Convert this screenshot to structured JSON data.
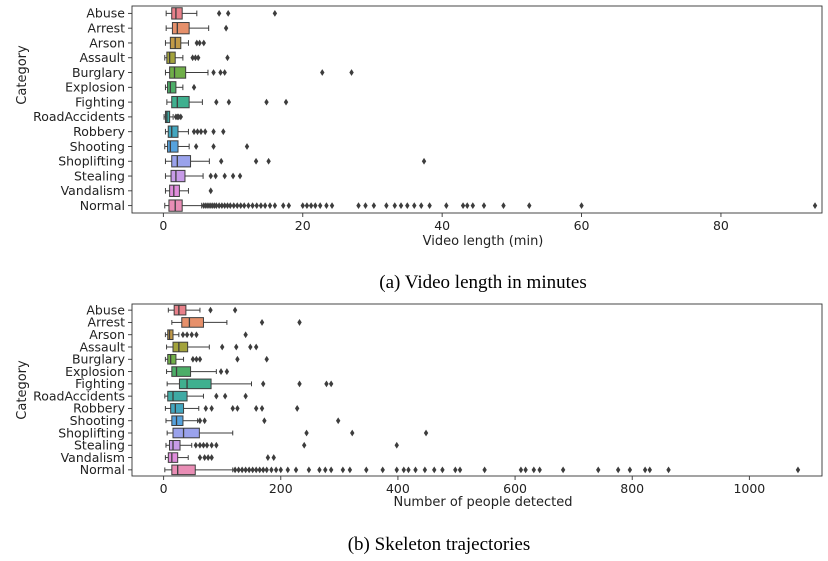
{
  "chart_data": [
    {
      "type": "box",
      "caption": "(a) Video length in minutes",
      "xlabel": "Video length (min)",
      "ylabel": "Category",
      "xlim": [
        -4.5,
        94.5
      ],
      "xticks": [
        0,
        20,
        40,
        60,
        80
      ],
      "categories": [
        {
          "name": "Abuse",
          "color": "#e8808a",
          "whislo": 0.4,
          "q1": 1.2,
          "median": 1.8,
          "q3": 2.7,
          "whishi": 4.8,
          "fliers": [
            8,
            9.3,
            16
          ]
        },
        {
          "name": "Arrest",
          "color": "#e6906b",
          "whislo": 0.4,
          "q1": 1.3,
          "median": 2.0,
          "q3": 3.7,
          "whishi": 6.5,
          "fliers": [
            9
          ]
        },
        {
          "name": "Arson",
          "color": "#c29a47",
          "whislo": 0.3,
          "q1": 1.0,
          "median": 1.7,
          "q3": 2.5,
          "whishi": 3.6,
          "fliers": [
            4.8,
            5.2,
            5.8
          ]
        },
        {
          "name": "Assault",
          "color": "#a3a33c",
          "whislo": 0.2,
          "q1": 0.5,
          "median": 0.9,
          "q3": 1.7,
          "whishi": 2.8,
          "fliers": [
            4.2,
            4.6,
            5.0,
            9.2
          ]
        },
        {
          "name": "Burglary",
          "color": "#6fae48",
          "whislo": 0.3,
          "q1": 0.9,
          "median": 1.6,
          "q3": 3.2,
          "whishi": 6.4,
          "fliers": [
            7.2,
            8.2,
            8.8,
            22.8,
            27
          ]
        },
        {
          "name": "Explosion",
          "color": "#4dae68",
          "whislo": 0.3,
          "q1": 0.6,
          "median": 1.0,
          "q3": 1.8,
          "whishi": 2.8,
          "fliers": [
            4.4
          ]
        },
        {
          "name": "Fighting",
          "color": "#3fb08f",
          "whislo": 0.5,
          "q1": 1.2,
          "median": 2.0,
          "q3": 3.7,
          "whishi": 5.6,
          "fliers": [
            7.6,
            9.4,
            14.8,
            17.6
          ]
        },
        {
          "name": "RoadAccidents",
          "color": "#3faaa4",
          "whislo": 0.1,
          "q1": 0.3,
          "median": 0.5,
          "q3": 0.9,
          "whishi": 1.4,
          "fliers": [
            1.8,
            2.0,
            2.2,
            2.5
          ]
        },
        {
          "name": "Robbery",
          "color": "#43a6bf",
          "whislo": 0.3,
          "q1": 0.7,
          "median": 1.2,
          "q3": 2.1,
          "whishi": 3.6,
          "fliers": [
            4.4,
            4.9,
            5.4,
            6.0,
            7.2,
            8.6
          ]
        },
        {
          "name": "Shooting",
          "color": "#56a2dd",
          "whislo": 0.2,
          "q1": 0.6,
          "median": 1.0,
          "q3": 2.1,
          "whishi": 3.7,
          "fliers": [
            4.7,
            7.2,
            12
          ]
        },
        {
          "name": "Shoplifting",
          "color": "#9aa2ec",
          "whislo": 0.3,
          "q1": 1.2,
          "median": 2.0,
          "q3": 3.9,
          "whishi": 6.6,
          "fliers": [
            8.3,
            13.3,
            15.1,
            37.4
          ]
        },
        {
          "name": "Stealing",
          "color": "#c79be8",
          "whislo": 0.3,
          "q1": 1.1,
          "median": 1.8,
          "q3": 3.1,
          "whishi": 5.7,
          "fliers": [
            6.8,
            7.5,
            8.8,
            10,
            11
          ]
        },
        {
          "name": "Vandalism",
          "color": "#e08ddb",
          "whislo": 0.3,
          "q1": 0.9,
          "median": 1.5,
          "q3": 2.3,
          "whishi": 3.6,
          "fliers": [
            6.8
          ]
        },
        {
          "name": "Normal",
          "color": "#e98db5",
          "whislo": 0.2,
          "q1": 0.8,
          "median": 1.7,
          "q3": 2.7,
          "whishi": 5.5,
          "fliers": [
            5.8,
            6.1,
            6.4,
            6.7,
            7.0,
            7.3,
            7.6,
            8.0,
            8.4,
            8.8,
            9.2,
            9.6,
            10.1,
            10.6,
            11.1,
            11.6,
            12.2,
            12.8,
            13.4,
            14.0,
            14.6,
            15.3,
            16.0,
            17.2,
            18.0,
            20.0,
            20.6,
            21.2,
            21.8,
            22.5,
            23.4,
            24.2,
            28.0,
            29.0,
            30.2,
            32.0,
            33.2,
            34.1,
            35.0,
            36.0,
            37.0,
            38.2,
            40.6,
            43.0,
            43.6,
            44.4,
            46.0,
            48.8,
            52.5,
            60.0,
            93.5
          ]
        }
      ]
    },
    {
      "type": "box",
      "caption": "(b) Skeleton trajectories",
      "xlabel": "Number of people detected",
      "ylabel": "Category",
      "xlim": [
        -54,
        1124
      ],
      "xticks": [
        0,
        200,
        400,
        600,
        800,
        1000
      ],
      "categories": [
        {
          "name": "Abuse",
          "color": "#e8808a",
          "whislo": 8,
          "q1": 18,
          "median": 26,
          "q3": 38,
          "whishi": 62,
          "fliers": [
            80,
            122
          ]
        },
        {
          "name": "Arrest",
          "color": "#e6906b",
          "whislo": 14,
          "q1": 31,
          "median": 44,
          "q3": 68,
          "whishi": 108,
          "fliers": [
            168,
            232
          ]
        },
        {
          "name": "Arson",
          "color": "#c29a47",
          "whislo": 3,
          "q1": 7,
          "median": 10,
          "q3": 16,
          "whishi": 26,
          "fliers": [
            33,
            40,
            48,
            56,
            140
          ]
        },
        {
          "name": "Assault",
          "color": "#a3a33c",
          "whislo": 5,
          "q1": 16,
          "median": 26,
          "q3": 41,
          "whishi": 78,
          "fliers": [
            100,
            124,
            148,
            158
          ]
        },
        {
          "name": "Burglary",
          "color": "#6fae48",
          "whislo": 3,
          "q1": 7,
          "median": 12,
          "q3": 21,
          "whishi": 34,
          "fliers": [
            50,
            56,
            62,
            126,
            176
          ]
        },
        {
          "name": "Explosion",
          "color": "#4dae68",
          "whislo": 5,
          "q1": 14,
          "median": 22,
          "q3": 46,
          "whishi": 90,
          "fliers": [
            98,
            108
          ]
        },
        {
          "name": "Fighting",
          "color": "#3fb08f",
          "whislo": 6,
          "q1": 27,
          "median": 40,
          "q3": 81,
          "whishi": 150,
          "fliers": [
            170,
            232,
            278,
            286
          ]
        },
        {
          "name": "RoadAccidents",
          "color": "#3faaa4",
          "whislo": 2,
          "q1": 7,
          "median": 16,
          "q3": 40,
          "whishi": 68,
          "fliers": [
            90,
            105,
            140
          ]
        },
        {
          "name": "Robbery",
          "color": "#43a6bf",
          "whislo": 3,
          "q1": 12,
          "median": 20,
          "q3": 34,
          "whishi": 60,
          "fliers": [
            72,
            82,
            118,
            126,
            158,
            168,
            228
          ]
        },
        {
          "name": "Shooting",
          "color": "#56a2dd",
          "whislo": 4,
          "q1": 14,
          "median": 22,
          "q3": 33,
          "whishi": 58,
          "fliers": [
            62,
            70,
            172,
            298
          ]
        },
        {
          "name": "Shoplifting",
          "color": "#9aa2ec",
          "whislo": 6,
          "q1": 16,
          "median": 34,
          "q3": 61,
          "whishi": 118,
          "fliers": [
            244,
            322,
            448
          ]
        },
        {
          "name": "Stealing",
          "color": "#c79be8",
          "whislo": 4,
          "q1": 10,
          "median": 16,
          "q3": 28,
          "whishi": 48,
          "fliers": [
            55,
            62,
            68,
            74,
            82,
            90,
            240,
            398
          ]
        },
        {
          "name": "Vandalism",
          "color": "#e08ddb",
          "whislo": 3,
          "q1": 8,
          "median": 14,
          "q3": 24,
          "whishi": 42,
          "fliers": [
            62,
            70,
            76,
            82,
            178,
            188
          ]
        },
        {
          "name": "Normal",
          "color": "#e98db5",
          "whislo": 2,
          "q1": 14,
          "median": 24,
          "q3": 54,
          "whishi": 118,
          "fliers": [
            122,
            128,
            134,
            140,
            146,
            152,
            158,
            164,
            170,
            176,
            184,
            192,
            200,
            212,
            226,
            248,
            266,
            276,
            286,
            306,
            318,
            346,
            374,
            398,
            410,
            418,
            430,
            446,
            462,
            476,
            498,
            506,
            548,
            610,
            618,
            632,
            642,
            682,
            742,
            776,
            796,
            822,
            830,
            862,
            1083
          ]
        }
      ]
    }
  ]
}
